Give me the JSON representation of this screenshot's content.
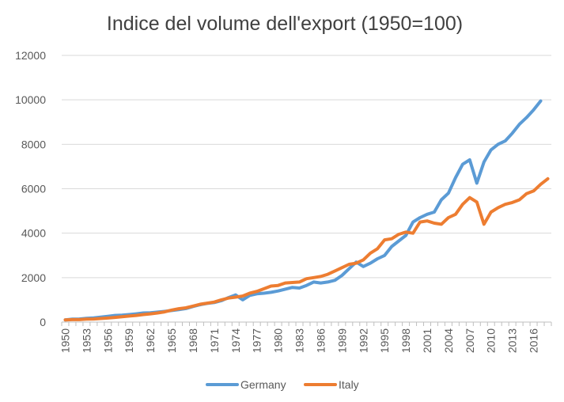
{
  "chart_data": {
    "type": "line",
    "title": "Indice del volume dell'export (1950=100)",
    "xlabel": "",
    "ylabel": "",
    "ylim": [
      0,
      12000
    ],
    "yticks": [
      0,
      2000,
      4000,
      6000,
      8000,
      10000,
      12000
    ],
    "ytick_labels": [
      "0",
      "2000",
      "4000",
      "6000",
      "8000",
      "10000",
      "12000"
    ],
    "x": [
      1950,
      1951,
      1952,
      1953,
      1954,
      1955,
      1956,
      1957,
      1958,
      1959,
      1960,
      1961,
      1962,
      1963,
      1964,
      1965,
      1966,
      1967,
      1968,
      1969,
      1970,
      1971,
      1972,
      1973,
      1974,
      1975,
      1976,
      1977,
      1978,
      1979,
      1980,
      1981,
      1982,
      1983,
      1984,
      1985,
      1986,
      1987,
      1988,
      1989,
      1990,
      1991,
      1992,
      1993,
      1994,
      1995,
      1996,
      1997,
      1998,
      1999,
      2000,
      2001,
      2002,
      2003,
      2004,
      2005,
      2006,
      2007,
      2008,
      2009,
      2010,
      2011,
      2012,
      2013,
      2014,
      2015,
      2016,
      2017,
      2018
    ],
    "xtick_labels": [
      "1950",
      "1953",
      "1956",
      "1959",
      "1962",
      "1965",
      "1968",
      "1971",
      "1974",
      "1977",
      "1980",
      "1983",
      "1986",
      "1989",
      "1992",
      "1995",
      "1998",
      "2001",
      "2004",
      "2007",
      "2010",
      "2013",
      "2016"
    ],
    "grid": true,
    "legend_position": "bottom",
    "series": [
      {
        "name": "Germany",
        "color": "#5b9bd5",
        "values": [
          100,
          130,
          140,
          170,
          190,
          220,
          260,
          300,
          310,
          340,
          370,
          410,
          420,
          450,
          480,
          520,
          560,
          610,
          700,
          780,
          840,
          880,
          960,
          1100,
          1220,
          1000,
          1200,
          1270,
          1300,
          1340,
          1400,
          1480,
          1560,
          1530,
          1650,
          1800,
          1760,
          1800,
          1880,
          2100,
          2400,
          2700,
          2500,
          2650,
          2850,
          3000,
          3400,
          3650,
          3900,
          4500,
          4700,
          4850,
          4950,
          5500,
          5800,
          6500,
          7100,
          7300,
          6250,
          7200,
          7750,
          8000,
          8150,
          8500,
          8900,
          9200,
          9550,
          9950,
          null
        ]
      },
      {
        "name": "Italy",
        "color": "#ed7d31",
        "values": [
          100,
          110,
          110,
          130,
          140,
          160,
          180,
          210,
          240,
          270,
          300,
          340,
          370,
          410,
          460,
          540,
          600,
          640,
          720,
          800,
          850,
          900,
          1000,
          1080,
          1120,
          1170,
          1300,
          1380,
          1500,
          1620,
          1650,
          1760,
          1780,
          1800,
          1950,
          2000,
          2050,
          2150,
          2300,
          2450,
          2600,
          2650,
          2800,
          3100,
          3300,
          3700,
          3750,
          3950,
          4050,
          4000,
          4500,
          4550,
          4450,
          4400,
          4700,
          4850,
          5300,
          5600,
          5400,
          4400,
          4950,
          5150,
          5300,
          5380,
          5500,
          5780,
          5900,
          6200,
          6450
        ]
      }
    ]
  }
}
